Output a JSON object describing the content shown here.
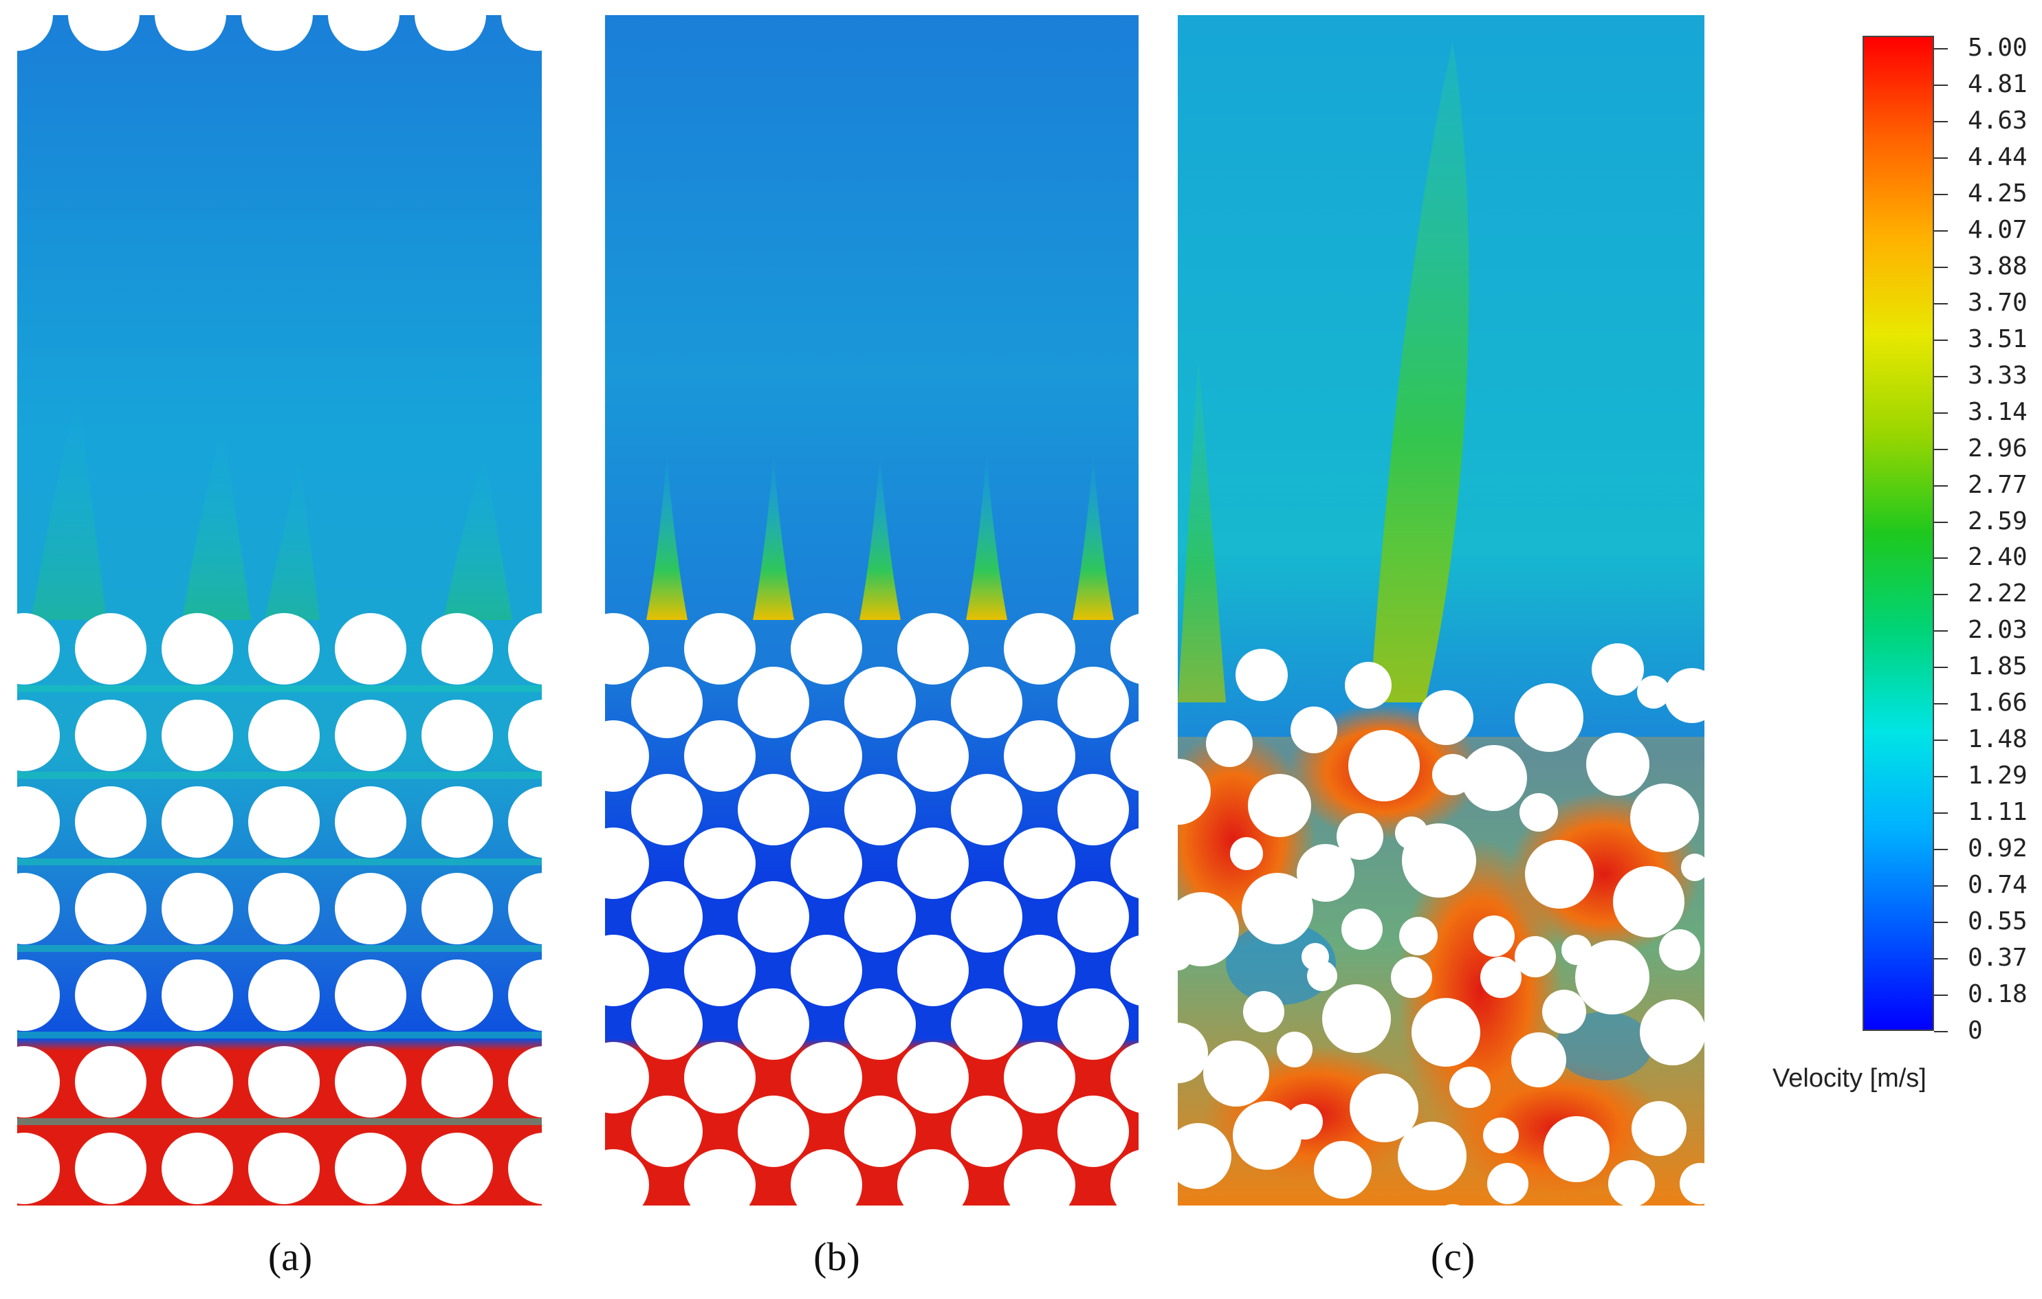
{
  "panels": [
    {
      "id": "a",
      "caption": "(a)",
      "arrangement": "aligned-square"
    },
    {
      "id": "b",
      "caption": "(b)",
      "arrangement": "staggered-hexagonal"
    },
    {
      "id": "c",
      "caption": "(c)",
      "arrangement": "random-polydisperse"
    }
  ],
  "colorbar": {
    "title": "Velocity [m/s]",
    "ticks": [
      "5.00",
      "4.81",
      "4.63",
      "4.44",
      "4.25",
      "4.07",
      "3.88",
      "3.70",
      "3.51",
      "3.33",
      "3.14",
      "2.96",
      "2.77",
      "2.59",
      "2.40",
      "2.22",
      "2.03",
      "1.85",
      "1.66",
      "1.48",
      "1.29",
      "1.11",
      "0.92",
      "0.74",
      "0.55",
      "0.37",
      "0.18",
      "0"
    ],
    "colors": [
      "#0000ff",
      "#0058ff",
      "#00b0ff",
      "#00e5e5",
      "#00d47a",
      "#1ec81e",
      "#9ad600",
      "#e8e800",
      "#ffb000",
      "#ff6000",
      "#ff0000"
    ]
  }
}
